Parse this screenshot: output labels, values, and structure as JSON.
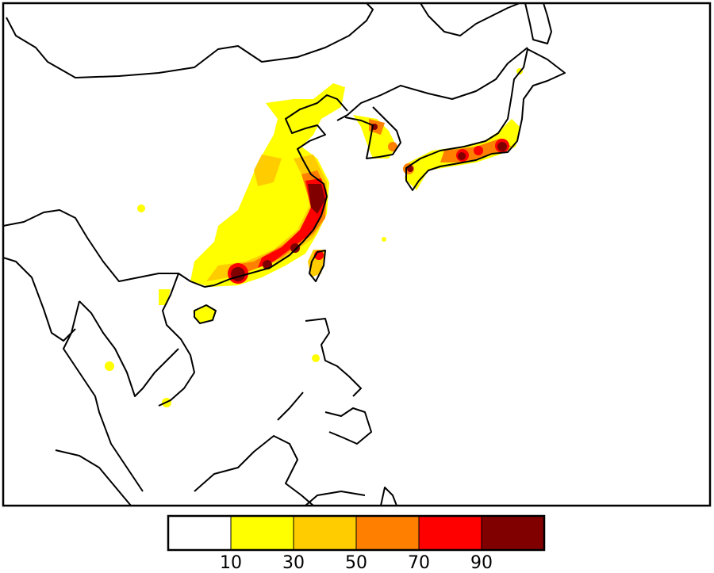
{
  "map": {
    "region": "East Asia",
    "frame_border_color": "#000000",
    "coastline_color": "#000000"
  },
  "colorbar": {
    "bins": [
      {
        "range": "<10",
        "color": "#ffffff"
      },
      {
        "range": "10-30",
        "color": "#ffff00"
      },
      {
        "range": "30-50",
        "color": "#ffcc00"
      },
      {
        "range": "50-70",
        "color": "#ff8000"
      },
      {
        "range": "70-90",
        "color": "#ff0000"
      },
      {
        "range": ">90",
        "color": "#800000"
      }
    ],
    "tick_labels": [
      "10",
      "30",
      "50",
      "70",
      "90"
    ]
  }
}
